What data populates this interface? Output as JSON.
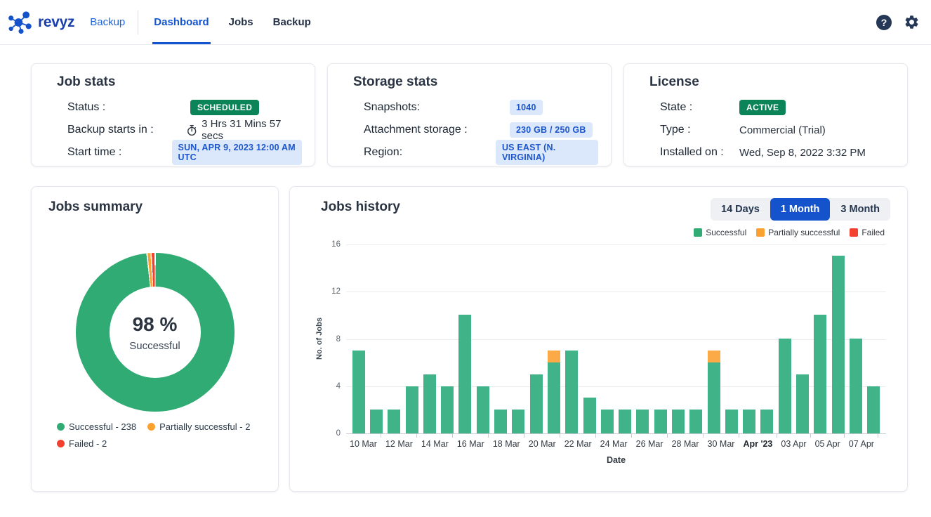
{
  "header": {
    "brand": "revyz",
    "backup_link": "Backup",
    "tabs": [
      {
        "label": "Dashboard",
        "active": true
      },
      {
        "label": "Jobs",
        "active": false
      },
      {
        "label": "Backup",
        "active": false
      }
    ],
    "help_glyph": "?"
  },
  "job_stats": {
    "title": "Job stats",
    "status_label": "Status :",
    "status_badge": "SCHEDULED",
    "starts_label": "Backup starts in :",
    "starts_value": "3 Hrs 31 Mins 57 secs",
    "start_time_label": "Start time :",
    "start_time_badge": "SUN, APR 9, 2023 12:00 AM UTC"
  },
  "storage_stats": {
    "title": "Storage stats",
    "snapshots_label": "Snapshots:",
    "snapshots_value": "1040",
    "attachment_label": "Attachment storage :",
    "attachment_value": "230 GB /  250 GB",
    "region_label": "Region:",
    "region_value": "US EAST (N. VIRGINIA)"
  },
  "license": {
    "title": "License",
    "state_label": "State :",
    "state_badge": "ACTIVE",
    "type_label": "Type :",
    "type_value": "Commercial (Trial)",
    "installed_label": "Installed on :",
    "installed_value": "Wed, Sep 8, 2022 3:32 PM"
  },
  "jobs_summary": {
    "title": "Jobs summary",
    "center_value": "98 %",
    "center_label": "Successful",
    "legend": [
      {
        "label": "Successful - 238",
        "color": "#2fab73"
      },
      {
        "label": "Partially successful - 2",
        "color": "#fba12f"
      },
      {
        "label": "Failed - 2",
        "color": "#f3402f"
      }
    ]
  },
  "jobs_history": {
    "title": "Jobs history",
    "range_buttons": [
      {
        "label": "14 Days",
        "active": false
      },
      {
        "label": "1 Month",
        "active": true
      },
      {
        "label": "3 Month",
        "active": false
      }
    ],
    "legend": [
      {
        "label": "Successful",
        "color": "#2fab73"
      },
      {
        "label": "Partially successful",
        "color": "#fba12f"
      },
      {
        "label": "Failed",
        "color": "#f3402f"
      }
    ]
  },
  "chart_data": [
    {
      "type": "pie",
      "title": "Jobs summary",
      "donut": true,
      "center_value": "98 %",
      "center_label": "Successful",
      "slices": [
        {
          "label": "Successful",
          "value": 238,
          "color": "#2fab73"
        },
        {
          "label": "Partially successful",
          "value": 2,
          "color": "#fba12f"
        },
        {
          "label": "Failed",
          "value": 2,
          "color": "#f3402f"
        }
      ],
      "legend_position": "bottom-left",
      "start_angle": "top-clockwise"
    },
    {
      "type": "bar",
      "title": "Jobs history",
      "stacked": true,
      "xlabel": "Date",
      "ylabel": "No. of Jobs",
      "ylim": [
        0,
        16
      ],
      "yticks": [
        0,
        4,
        8,
        12,
        16
      ],
      "grid": true,
      "legend_position": "top-right",
      "categories": [
        "10 Mar",
        "11 Mar",
        "12 Mar",
        "13 Mar",
        "14 Mar",
        "15 Mar",
        "16 Mar",
        "17 Mar",
        "18 Mar",
        "19 Mar",
        "20 Mar",
        "21 Mar",
        "22 Mar",
        "23 Mar",
        "24 Mar",
        "25 Mar",
        "26 Mar",
        "27 Mar",
        "28 Mar",
        "29 Mar",
        "30 Mar",
        "31 Mar",
        "01 Apr",
        "02 Apr",
        "03 Apr",
        "04 Apr",
        "05 Apr",
        "06 Apr",
        "07 Apr",
        "08 Apr"
      ],
      "series": [
        {
          "name": "Successful",
          "color": "#41b389",
          "values": [
            7,
            2,
            2,
            4,
            5,
            4,
            10,
            4,
            2,
            2,
            5,
            6,
            7,
            3,
            2,
            2,
            2,
            2,
            2,
            2,
            6,
            2,
            2,
            2,
            8,
            5,
            10,
            15,
            8,
            4
          ]
        },
        {
          "name": "Partially successful",
          "color": "#fbaa47",
          "values": [
            0,
            0,
            0,
            0,
            0,
            0,
            0,
            0,
            0,
            0,
            0,
            1,
            0,
            0,
            0,
            0,
            0,
            0,
            0,
            0,
            1,
            0,
            0,
            0,
            0,
            0,
            0,
            0,
            0,
            0
          ]
        },
        {
          "name": "Failed",
          "color": "#f3402f",
          "values": [
            0,
            0,
            0,
            0,
            0,
            0,
            0,
            0,
            0,
            0,
            0,
            0,
            0,
            0,
            0,
            0,
            0,
            0,
            0,
            0,
            0,
            0,
            0,
            0,
            0,
            0,
            0,
            0,
            0,
            0
          ]
        }
      ],
      "x_tick_labels": [
        "10 Mar",
        "12 Mar",
        "14 Mar",
        "16 Mar",
        "18 Mar",
        "20 Mar",
        "22 Mar",
        "24 Mar",
        "26 Mar",
        "28 Mar",
        "30 Mar",
        "Apr '23",
        "03 Apr",
        "05 Apr",
        "07 Apr"
      ],
      "x_tick_every": 2,
      "bold_x_label": "Apr '23"
    }
  ],
  "colors": {
    "accent_blue": "#1355d0",
    "link_blue": "#1f63d8",
    "brand_blue": "#1a3fae",
    "badge_green_bg": "#0b8458",
    "badge_blue_bg": "#dbe8fc",
    "badge_blue_text": "#1d56cb",
    "icon_navy": "#253858",
    "chart_green": "#41b389",
    "chart_orange": "#fbaa47",
    "chart_red": "#f3402f"
  }
}
